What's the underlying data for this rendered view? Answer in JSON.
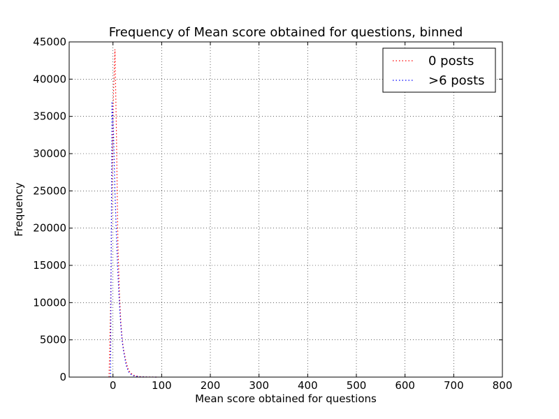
{
  "chart_data": {
    "type": "line",
    "title": "Frequency of Mean score obtained for questions, binned",
    "xlabel": "Mean score obtained for questions",
    "ylabel": "Frequency",
    "xlim": [
      -90,
      800
    ],
    "ylim": [
      0,
      45000
    ],
    "xticks": [
      0,
      100,
      200,
      300,
      400,
      500,
      600,
      700,
      800
    ],
    "yticks": [
      0,
      5000,
      10000,
      15000,
      20000,
      25000,
      30000,
      35000,
      40000,
      45000
    ],
    "grid": true,
    "legend_position": "top-right",
    "line_style": "dotted",
    "series": [
      {
        "name": "0 posts",
        "color": "#ff0000",
        "x": [
          -8,
          -5,
          -2,
          1,
          4,
          7,
          10,
          13,
          16,
          19,
          22,
          27,
          32,
          38,
          45,
          55,
          70,
          90
        ],
        "y": [
          0,
          9000,
          26000,
          38000,
          44000,
          33000,
          18000,
          11500,
          7500,
          5000,
          3600,
          2000,
          900,
          450,
          180,
          60,
          15,
          0
        ]
      },
      {
        "name": ">6 posts",
        "color": "#0000ff",
        "x": [
          -5,
          -2,
          1,
          4,
          7,
          10,
          13,
          16,
          19,
          22,
          27,
          32,
          38,
          45,
          55,
          70,
          90
        ],
        "y": [
          0,
          37000,
          33000,
          25000,
          19000,
          14000,
          10000,
          7000,
          4800,
          3400,
          1600,
          700,
          300,
          120,
          40,
          10,
          0
        ]
      }
    ]
  }
}
